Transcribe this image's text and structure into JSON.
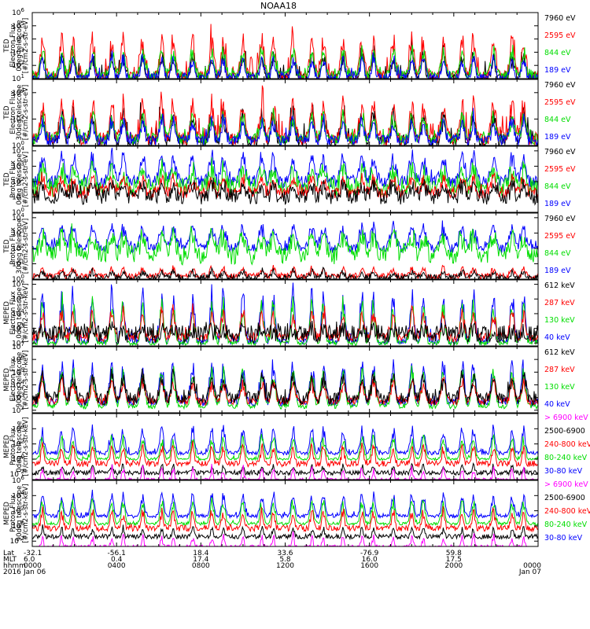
{
  "figure": {
    "title": "NOAA18",
    "colors": {
      "black": "#000000",
      "red": "#ff0000",
      "green": "#00dd00",
      "blue": "#0000ff",
      "magenta": "#ff00ff"
    }
  },
  "x_axis": {
    "row_labels": [
      "Lat",
      "MLT",
      "hhmm",
      "2016"
    ],
    "ticks": [
      {
        "lat": "-32.1",
        "mlt": "6.0",
        "hhmm": "0000",
        "date": "Jan 06"
      },
      {
        "lat": "-56.1",
        "mlt": "0.4",
        "hhmm": "0400",
        "date": ""
      },
      {
        "lat": "18.4",
        "mlt": "17.4",
        "hhmm": "0800",
        "date": ""
      },
      {
        "lat": "33.6",
        "mlt": "5.8",
        "hhmm": "1200",
        "date": ""
      },
      {
        "lat": "-76.9",
        "mlt": "16.0",
        "hhmm": "1600",
        "date": ""
      },
      {
        "lat": "59.8",
        "mlt": "17.5",
        "hhmm": "2000",
        "date": ""
      },
      {
        "lat": "",
        "mlt": "",
        "hhmm": "0000",
        "date": "Jan 07"
      }
    ]
  },
  "chart_data": [
    {
      "type": "line",
      "ylabel": [
        "TED",
        "Electron Flux",
        "0deg telescope",
        "[#/cm2-s-str-eV]"
      ],
      "yticks": [
        "10^1",
        "10^2",
        "10^3",
        "10^4",
        "10^5",
        "10^6"
      ],
      "ylog": [
        1,
        6
      ],
      "xlim": [
        "0000 Jan 06",
        "0000 Jan 07"
      ],
      "legend": [
        {
          "name": "7960 eV",
          "color": "black"
        },
        {
          "name": "2595 eV",
          "color": "red"
        },
        {
          "name": "844 eV",
          "color": "green"
        },
        {
          "name": "189 eV",
          "color": "blue"
        }
      ],
      "series": [
        {
          "name": "7960 eV",
          "color": "black",
          "baseline": 1.0,
          "peak": 3.0,
          "noise": 0.4,
          "spike": 0.7,
          "width": 6
        },
        {
          "name": "2595 eV",
          "color": "red",
          "baseline": 1.2,
          "peak": 4.5,
          "noise": 0.4,
          "spike": 0.7,
          "width": 6
        },
        {
          "name": "844 eV",
          "color": "green",
          "baseline": 1.2,
          "peak": 3.4,
          "noise": 0.4,
          "spike": 0.3,
          "width": 6
        },
        {
          "name": "189 eV",
          "color": "blue",
          "baseline": 1.1,
          "peak": 2.8,
          "noise": 0.3,
          "spike": 0.3,
          "width": 5
        }
      ]
    },
    {
      "type": "line",
      "ylabel": [
        "TED",
        "Electron Flux",
        "30deg telescope",
        "[#/cm2-s-str-eV]"
      ],
      "yticks": [
        "10^0",
        "10^2",
        "10^4"
      ],
      "ylog": [
        0,
        5
      ],
      "xlim": [
        "0000 Jan 06",
        "0000 Jan 07"
      ],
      "legend": [
        {
          "name": "7960 eV",
          "color": "black"
        },
        {
          "name": "2595 eV",
          "color": "red"
        },
        {
          "name": "844 eV",
          "color": "green"
        },
        {
          "name": "189 eV",
          "color": "blue"
        }
      ],
      "series": [
        {
          "name": "7960 eV",
          "color": "black",
          "baseline": 0.3,
          "peak": 2.7,
          "noise": 0.5,
          "spike": 0.7,
          "width": 6
        },
        {
          "name": "2595 eV",
          "color": "red",
          "baseline": 0.5,
          "peak": 3.8,
          "noise": 0.5,
          "spike": 0.7,
          "width": 6
        },
        {
          "name": "844 eV",
          "color": "green",
          "baseline": 0.5,
          "peak": 2.5,
          "noise": 0.4,
          "spike": 0.3,
          "width": 6
        },
        {
          "name": "189 eV",
          "color": "blue",
          "baseline": 0.4,
          "peak": 2.2,
          "noise": 0.4,
          "spike": 0.3,
          "width": 5
        }
      ]
    },
    {
      "type": "line",
      "ylabel": [
        "TED",
        "Proton Flux",
        "0deg telescope",
        "[#/cm2-s-str-eV]"
      ],
      "yticks": [
        "10^0",
        "10^1",
        "10^2",
        "10^3",
        "10^4"
      ],
      "ylog": [
        0,
        4.3
      ],
      "xlim": [
        "0000 Jan 06",
        "0000 Jan 07"
      ],
      "legend": [
        {
          "name": "7960 eV",
          "color": "black"
        },
        {
          "name": "2595 eV",
          "color": "red"
        },
        {
          "name": "844 eV",
          "color": "green"
        },
        {
          "name": "189 eV",
          "color": "blue"
        }
      ],
      "series": [
        {
          "name": "189 eV",
          "color": "blue",
          "baseline": 2.0,
          "peak": 3.9,
          "noise": 0.4,
          "spike": 0.3,
          "width": 7
        },
        {
          "name": "844 eV",
          "color": "green",
          "baseline": 1.6,
          "peak": 3.0,
          "noise": 0.6,
          "spike": 0.2,
          "width": 8
        },
        {
          "name": "2595 eV",
          "color": "red",
          "baseline": 1.3,
          "peak": 2.4,
          "noise": 0.4,
          "spike": 0.2,
          "width": 6
        },
        {
          "name": "7960 eV",
          "color": "black",
          "baseline": 1.0,
          "peak": 2.0,
          "noise": 0.5,
          "spike": 0.3,
          "width": 6
        }
      ]
    },
    {
      "type": "line",
      "ylabel": [
        "TED",
        "Proton Flux",
        "30deg telescope",
        "[#/cm2-s-str-eV]"
      ],
      "yticks": [
        "10^0",
        "10^1",
        "10^2",
        "10^3",
        "10^4"
      ],
      "ylog": [
        0,
        4.3
      ],
      "xlim": [
        "0000 Jan 06",
        "0000 Jan 07"
      ],
      "legend": [
        {
          "name": "7960 eV",
          "color": "black"
        },
        {
          "name": "2595 eV",
          "color": "red"
        },
        {
          "name": "844 eV",
          "color": "green"
        },
        {
          "name": "189 eV",
          "color": "blue"
        }
      ],
      "series": [
        {
          "name": "189 eV",
          "color": "blue",
          "baseline": 2.0,
          "peak": 3.6,
          "noise": 0.3,
          "spike": 0.2,
          "width": 8
        },
        {
          "name": "844 eV",
          "color": "green",
          "baseline": 1.5,
          "peak": 3.0,
          "noise": 0.6,
          "spike": 0.2,
          "width": 9
        },
        {
          "name": "2595 eV",
          "color": "red",
          "baseline": 0.2,
          "peak": 0.8,
          "noise": 0.2,
          "spike": 0.0,
          "width": 5
        },
        {
          "name": "7960 eV",
          "color": "black",
          "baseline": 0.1,
          "peak": 0.6,
          "noise": 0.2,
          "spike": 0.0,
          "width": 5
        }
      ]
    },
    {
      "type": "line",
      "ylabel": [
        "MEPED",
        "Electron Flux",
        "0deg telescope",
        "[#/cm2-s-str-keV]"
      ],
      "yticks": [
        "10^2",
        "10^3",
        "10^4",
        "10^5",
        "10^6"
      ],
      "ylog": [
        1.8,
        6.3
      ],
      "xlim": [
        "0000 Jan 06",
        "0000 Jan 07"
      ],
      "legend": [
        {
          "name": "612 keV",
          "color": "black"
        },
        {
          "name": "287 keV",
          "color": "red"
        },
        {
          "name": "130 keV",
          "color": "green"
        },
        {
          "name": "40 keV",
          "color": "blue"
        }
      ],
      "series": [
        {
          "name": "40 keV",
          "color": "blue",
          "baseline": 2.1,
          "peak": 6.0,
          "noise": 0.2,
          "spike": 0.4,
          "width": 5
        },
        {
          "name": "130 keV",
          "color": "green",
          "baseline": 2.0,
          "peak": 5.2,
          "noise": 0.15,
          "spike": 0.3,
          "width": 5
        },
        {
          "name": "287 keV",
          "color": "red",
          "baseline": 2.4,
          "peak": 4.5,
          "noise": 0.3,
          "spike": 0.3,
          "width": 5
        },
        {
          "name": "612 keV",
          "color": "black",
          "baseline": 2.6,
          "peak": 3.0,
          "noise": 0.6,
          "spike": 0.2,
          "width": 5
        }
      ]
    },
    {
      "type": "line",
      "ylabel": [
        "MEPED",
        "Electron Flux",
        "90deg telescope",
        "[#/cm2-s-str-keV]"
      ],
      "yticks": [
        "10^2",
        "10^3",
        "10^4",
        "10^5",
        "10^6",
        "10^7"
      ],
      "ylog": [
        1.8,
        7
      ],
      "xlim": [
        "0000 Jan 06",
        "0000 Jan 07"
      ],
      "legend": [
        {
          "name": "612 keV",
          "color": "black"
        },
        {
          "name": "287 keV",
          "color": "red"
        },
        {
          "name": "130 keV",
          "color": "green"
        },
        {
          "name": "40 keV",
          "color": "blue"
        }
      ],
      "series": [
        {
          "name": "40 keV",
          "color": "blue",
          "baseline": 2.6,
          "peak": 6.0,
          "noise": 0.3,
          "spike": 0.3,
          "width": 6
        },
        {
          "name": "130 keV",
          "color": "green",
          "baseline": 2.3,
          "peak": 5.5,
          "noise": 0.2,
          "spike": 0.2,
          "width": 6
        },
        {
          "name": "287 keV",
          "color": "red",
          "baseline": 2.7,
          "peak": 4.5,
          "noise": 0.3,
          "spike": 0.2,
          "width": 6
        },
        {
          "name": "612 keV",
          "color": "black",
          "baseline": 2.9,
          "peak": 5.0,
          "noise": 0.5,
          "spike": 0.3,
          "width": 6
        }
      ]
    },
    {
      "type": "line",
      "ylabel": [
        "MEPED",
        "Proton Flux",
        "0deg telescope",
        "[#/cm2-s-str-keV]"
      ],
      "yticks": [
        "10^-2",
        "10^0",
        "10^2",
        "10^4"
      ],
      "ylog": [
        -2.7,
        6
      ],
      "xlim": [
        "0000 Jan 06",
        "0000 Jan 07"
      ],
      "legend": [
        {
          "name": "> 6900 keV",
          "color": "magenta"
        },
        {
          "name": "2500-6900",
          "color": "black"
        },
        {
          "name": "240-800 keV",
          "color": "red"
        },
        {
          "name": "80-240 keV",
          "color": "green"
        },
        {
          "name": "30-80 keV",
          "color": "blue"
        }
      ],
      "series": [
        {
          "name": "30-80 keV",
          "color": "blue",
          "baseline": 0.8,
          "peak": 4.5,
          "noise": 0.25,
          "spike": 0.3,
          "width": 5
        },
        {
          "name": "80-240 keV",
          "color": "green",
          "baseline": 0.0,
          "peak": 3.3,
          "noise": 0.15,
          "spike": 0.2,
          "width": 5
        },
        {
          "name": "240-800 keV",
          "color": "red",
          "baseline": -0.6,
          "peak": 2.2,
          "noise": 0.4,
          "spike": 0.1,
          "width": 4
        },
        {
          "name": "2500-6900",
          "color": "black",
          "baseline": -1.8,
          "peak": -0.6,
          "noise": 0.3,
          "spike": 0.0,
          "width": 3
        },
        {
          "name": "> 6900 keV",
          "color": "magenta",
          "baseline": -2.8,
          "peak": -0.8,
          "noise": 0.3,
          "spike": 0.0,
          "width": 3
        }
      ]
    },
    {
      "type": "line",
      "ylabel": [
        "MEPED",
        "Proton Flux",
        "90deg telescope",
        "[#/cm2-s-str-keV]"
      ],
      "yticks": [
        "10^-2",
        "10^0",
        "10^2",
        "10^4",
        "10^6"
      ],
      "ylog": [
        -2.7,
        6
      ],
      "xlim": [
        "0000 Jan 06",
        "0000 Jan 07"
      ],
      "legend": [
        {
          "name": "> 6900 keV",
          "color": "magenta"
        },
        {
          "name": "2500-6900",
          "color": "black"
        },
        {
          "name": "240-800 keV",
          "color": "red"
        },
        {
          "name": "80-240 keV",
          "color": "green"
        },
        {
          "name": "30-80 keV",
          "color": "blue"
        }
      ],
      "series": [
        {
          "name": "30-80 keV",
          "color": "blue",
          "baseline": 1.3,
          "peak": 4.6,
          "noise": 0.25,
          "spike": 0.3,
          "width": 5
        },
        {
          "name": "80-240 keV",
          "color": "green",
          "baseline": 0.3,
          "peak": 3.7,
          "noise": 0.2,
          "spike": 0.2,
          "width": 5
        },
        {
          "name": "240-800 keV",
          "color": "red",
          "baseline": -0.3,
          "peak": 2.4,
          "noise": 0.4,
          "spike": 0.1,
          "width": 4
        },
        {
          "name": "2500-6900",
          "color": "black",
          "baseline": -1.4,
          "peak": 0.0,
          "noise": 0.3,
          "spike": 0.0,
          "width": 3
        },
        {
          "name": "> 6900 keV",
          "color": "magenta",
          "baseline": -2.8,
          "peak": -1.0,
          "noise": 0.3,
          "spike": 0.0,
          "width": 3
        }
      ]
    }
  ]
}
